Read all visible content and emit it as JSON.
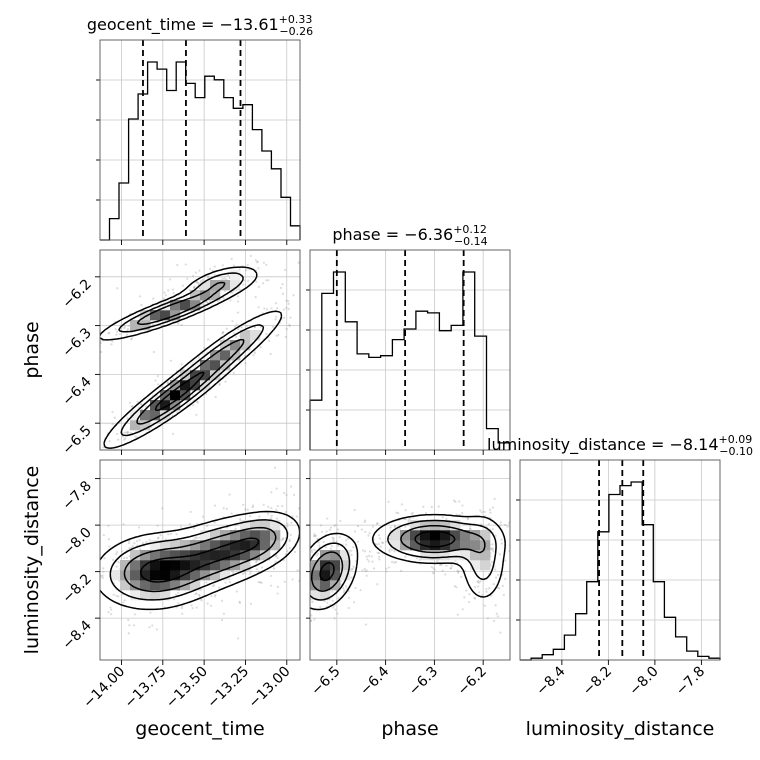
{
  "chart_data": {
    "type": "corner",
    "parameters": [
      "geocent_time",
      "phase",
      "luminosity_distance"
    ],
    "axis_labels": {
      "x": [
        "geocent_time",
        "phase",
        "luminosity_distance"
      ],
      "y": [
        "phase",
        "luminosity_distance"
      ]
    },
    "ranges": {
      "geocent_time": [
        -14.13,
        -12.92
      ],
      "phase": [
        -6.555,
        -6.145
      ],
      "luminosity_distance": [
        -8.58,
        -7.72
      ]
    },
    "ticks": {
      "geocent_time": [
        "-14.00",
        "-13.75",
        "-13.50",
        "-13.25",
        "-13.00"
      ],
      "phase": [
        "-6.5",
        "-6.4",
        "-6.3",
        "-6.2"
      ],
      "luminosity_distance": [
        "-8.4",
        "-8.2",
        "-8.0",
        "-7.8"
      ]
    },
    "tick_values": {
      "geocent_time": [
        -14.0,
        -13.75,
        -13.5,
        -13.25,
        -13.0
      ],
      "phase": [
        -6.5,
        -6.4,
        -6.3,
        -6.2
      ],
      "luminosity_distance": [
        -8.4,
        -8.2,
        -8.0,
        -7.8
      ]
    },
    "summary": [
      {
        "name": "geocent_time",
        "median": "−13.61",
        "plus": "+0.33",
        "minus": "−0.26",
        "quantiles": [
          -13.87,
          -13.61,
          -13.28
        ]
      },
      {
        "name": "phase",
        "median": "−6.36",
        "plus": "+0.12",
        "minus": "−0.14",
        "quantiles": [
          -6.5,
          -6.36,
          -6.24
        ]
      },
      {
        "name": "luminosity_distance",
        "median": "−8.14",
        "plus": "+0.09",
        "minus": "−0.10",
        "quantiles": [
          -8.24,
          -8.14,
          -8.05
        ]
      }
    ],
    "histograms": [
      {
        "name": "geocent_time",
        "range": [
          -14.13,
          -12.92
        ],
        "counts": [
          0,
          12,
          32,
          68,
          82,
          100,
          96,
          84,
          100,
          88,
          80,
          92,
          90,
          80,
          74,
          76,
          62,
          50,
          40,
          24,
          8
        ]
      },
      {
        "name": "phase",
        "range": [
          -6.555,
          -6.145
        ],
        "counts": [
          28,
          88,
          100,
          72,
          54,
          52,
          53,
          62,
          68,
          78,
          77,
          67,
          70,
          100,
          64,
          12,
          4
        ]
      },
      {
        "name": "luminosity_distance",
        "range": [
          -8.58,
          -7.72
        ],
        "counts": [
          0,
          1,
          3,
          6,
          14,
          26,
          44,
          72,
          93,
          98,
          100,
          76,
          44,
          24,
          13,
          5,
          2,
          1
        ]
      }
    ],
    "density_peaks": {
      "phase_vs_geocent_time": [
        {
          "x": -13.7,
          "y": -6.27,
          "sx": 0.22,
          "sy": 0.03,
          "r": 0.9,
          "w": 0.9
        },
        {
          "x": -13.4,
          "y": -6.21,
          "sx": 0.12,
          "sy": 0.018,
          "r": 0.6,
          "w": 0.5
        },
        {
          "x": -13.7,
          "y": -6.45,
          "sx": 0.2,
          "sy": 0.05,
          "r": 0.92,
          "w": 1.0
        },
        {
          "x": -13.35,
          "y": -6.35,
          "sx": 0.18,
          "sy": 0.045,
          "r": 0.9,
          "w": 0.6
        }
      ],
      "luminosity_distance_vs_geocent_time": [
        {
          "x": -13.8,
          "y": -8.2,
          "sx": 0.18,
          "sy": 0.08,
          "r": 0.1,
          "w": 1.0
        },
        {
          "x": -13.4,
          "y": -8.12,
          "sx": 0.2,
          "sy": 0.08,
          "r": 0.4,
          "w": 0.9
        },
        {
          "x": -13.15,
          "y": -8.06,
          "sx": 0.12,
          "sy": 0.06,
          "r": 0.3,
          "w": 0.5
        }
      ],
      "luminosity_distance_vs_phase": [
        {
          "x": -6.52,
          "y": -8.2,
          "sx": 0.03,
          "sy": 0.08,
          "r": 0.3,
          "w": 0.9
        },
        {
          "x": -6.3,
          "y": -8.06,
          "sx": 0.06,
          "sy": 0.05,
          "r": 0.0,
          "w": 1.0
        },
        {
          "x": -6.2,
          "y": -8.15,
          "sx": 0.025,
          "sy": 0.1,
          "r": 0.0,
          "w": 0.4
        }
      ]
    },
    "quantile_style": "dashed",
    "grid": true
  }
}
